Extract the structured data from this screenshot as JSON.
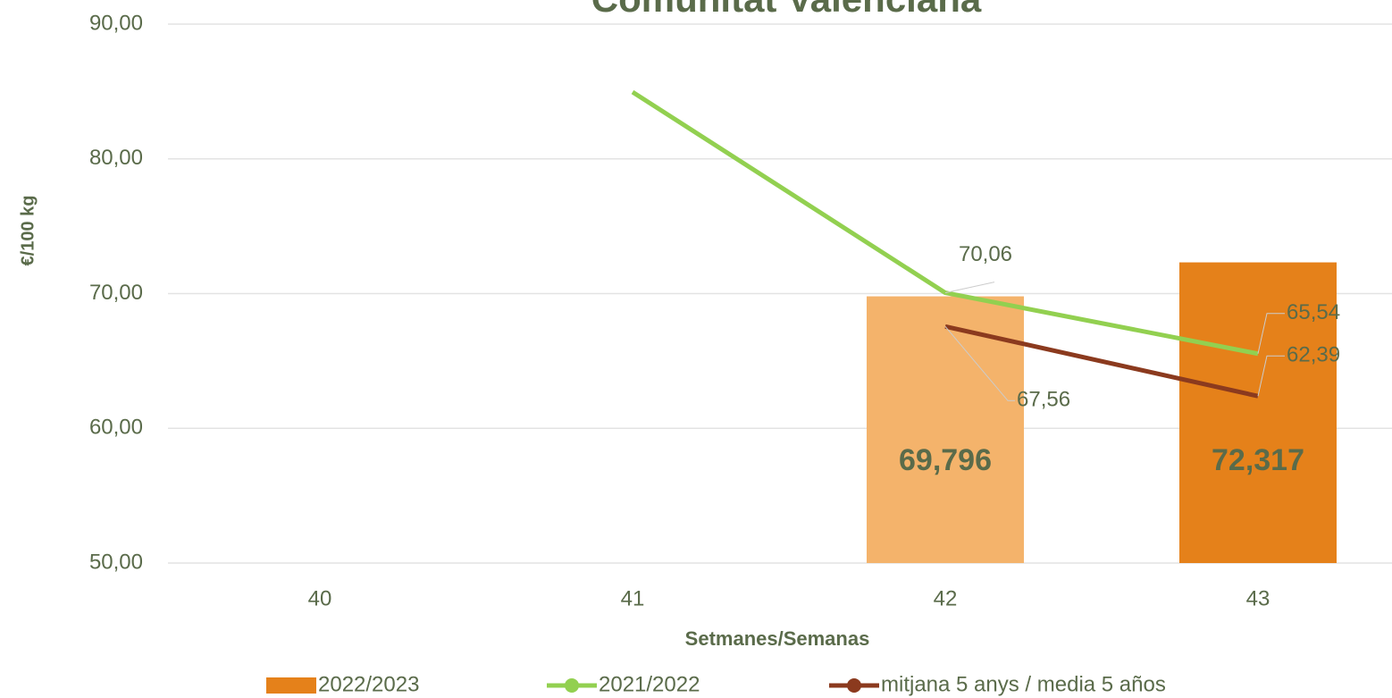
{
  "chart_data": {
    "type": "bar_line",
    "title": "Comunitat Valenciana",
    "xlabel": "Setmanes/Semanas",
    "ylabel": "€/100 kg",
    "categories": [
      "40",
      "41",
      "42",
      "43"
    ],
    "series": [
      {
        "name": "2022/2023",
        "kind": "bar",
        "color": "#e5811a",
        "point_colors": [
          null,
          null,
          "#f4b36b",
          "#e5811a"
        ],
        "values": [
          null,
          null,
          69.796,
          72.317
        ],
        "value_labels": [
          null,
          null,
          "69,796",
          "72,317"
        ]
      },
      {
        "name": "2021/2022",
        "kind": "line",
        "color": "#92d050",
        "values": [
          null,
          84.96,
          70.06,
          65.54
        ],
        "value_labels": [
          null,
          null,
          "70,06",
          "65,54"
        ]
      },
      {
        "name": "mitjana 5 anys / media 5 años",
        "kind": "line",
        "color": "#8b3a1e",
        "values": [
          null,
          null,
          67.56,
          62.39
        ],
        "value_labels": [
          null,
          null,
          "67,56",
          "62,39"
        ]
      }
    ],
    "ylim": [
      50,
      90
    ],
    "yticks": [
      {
        "value": 50,
        "label": "50,00"
      },
      {
        "value": 60,
        "label": "60,00"
      },
      {
        "value": 70,
        "label": "70,00"
      },
      {
        "value": 80,
        "label": "80,00"
      },
      {
        "value": 90,
        "label": "90,00"
      }
    ],
    "grid": true,
    "legend": "bottom"
  }
}
